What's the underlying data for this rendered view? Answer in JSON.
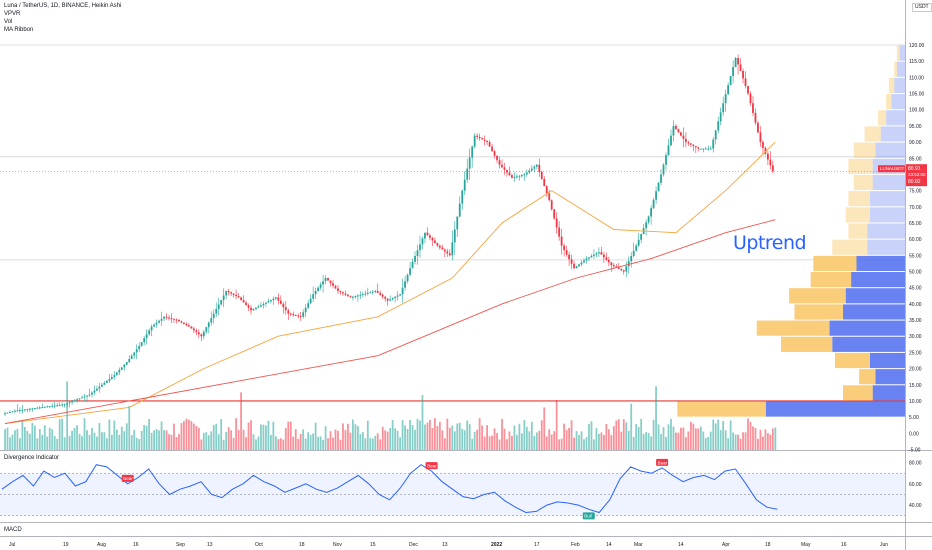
{
  "header": {
    "title": "Luna / TetherUS, 1D, BINANCE, Heikin Ashi",
    "indicators": [
      "VPVR",
      "Vol",
      "MA Ribbon"
    ],
    "currency": "USDT"
  },
  "annotation": {
    "text": "Uptrend",
    "color": "#2962ff"
  },
  "price_label": {
    "symbol": "LUNAUSDT",
    "value": "80.91",
    "countdown": "23:52:00",
    "prev": "80.82"
  },
  "colors": {
    "up": "#26a69a",
    "down": "#f23645",
    "ma_fast": "#f7a33b",
    "ma_slow": "#ef5350",
    "rsi": "#2962ff",
    "vp_up": "#4d6cf0",
    "vp_down": "#f9c86b"
  },
  "panes": {
    "rsi_title": "Divergence Indicator",
    "macd_title": "MACD"
  },
  "chart_data": {
    "type": "line",
    "title": "Luna / TetherUS, 1D, BINANCE, Heikin Ashi",
    "x_ticks": [
      "Jul",
      "19",
      "Aug",
      "16",
      "Sep",
      "13",
      "Oct",
      "18",
      "Nov",
      "15",
      "Dec",
      "13",
      "2022",
      "17",
      "Feb",
      "14",
      "Mar",
      "14",
      "Apr",
      "18",
      "May",
      "16",
      "Jun"
    ],
    "y_ticks": [
      "120.00",
      "115.00",
      "110.00",
      "105.00",
      "100.00",
      "95.00",
      "90.00",
      "85.00",
      "80.00",
      "75.00",
      "70.00",
      "65.00",
      "60.00",
      "55.00",
      "50.00",
      "45.00",
      "40.00",
      "35.00",
      "30.00",
      "25.00",
      "20.00",
      "15.00",
      "10.00",
      "5.00",
      "0.00",
      "-5.00"
    ],
    "ylim": [
      -5,
      120
    ],
    "price_path": [
      [
        0,
        6
      ],
      [
        5,
        7
      ],
      [
        15,
        8
      ],
      [
        25,
        9
      ],
      [
        35,
        12
      ],
      [
        40,
        15
      ],
      [
        45,
        18
      ],
      [
        50,
        22
      ],
      [
        55,
        27
      ],
      [
        60,
        33
      ],
      [
        65,
        36
      ],
      [
        70,
        35
      ],
      [
        75,
        33
      ],
      [
        80,
        30
      ],
      [
        85,
        37
      ],
      [
        90,
        44
      ],
      [
        95,
        42
      ],
      [
        100,
        38
      ],
      [
        105,
        40
      ],
      [
        110,
        42
      ],
      [
        115,
        37
      ],
      [
        120,
        36
      ],
      [
        125,
        43
      ],
      [
        130,
        48
      ],
      [
        135,
        44
      ],
      [
        140,
        42
      ],
      [
        145,
        43
      ],
      [
        150,
        44
      ],
      [
        155,
        41
      ],
      [
        160,
        43
      ],
      [
        165,
        53
      ],
      [
        170,
        62
      ],
      [
        175,
        58
      ],
      [
        180,
        55
      ],
      [
        185,
        75
      ],
      [
        190,
        92
      ],
      [
        195,
        90
      ],
      [
        200,
        83
      ],
      [
        205,
        79
      ],
      [
        210,
        80
      ],
      [
        215,
        83
      ],
      [
        220,
        72
      ],
      [
        225,
        58
      ],
      [
        230,
        51
      ],
      [
        235,
        54
      ],
      [
        240,
        56
      ],
      [
        245,
        52
      ],
      [
        250,
        50
      ],
      [
        255,
        58
      ],
      [
        260,
        67
      ],
      [
        265,
        80
      ],
      [
        270,
        95
      ],
      [
        275,
        90
      ],
      [
        280,
        88
      ],
      [
        285,
        88
      ],
      [
        290,
        102
      ],
      [
        295,
        116
      ],
      [
        297,
        112
      ],
      [
        300,
        105
      ],
      [
        305,
        90
      ],
      [
        310,
        81
      ]
    ],
    "ma_fast": [
      [
        0,
        3
      ],
      [
        50,
        8
      ],
      [
        80,
        20
      ],
      [
        110,
        30
      ],
      [
        150,
        36
      ],
      [
        180,
        48
      ],
      [
        200,
        65
      ],
      [
        220,
        75
      ],
      [
        245,
        63
      ],
      [
        270,
        62
      ],
      [
        290,
        75
      ],
      [
        310,
        90
      ]
    ],
    "ma_slow": [
      [
        0,
        3
      ],
      [
        100,
        17
      ],
      [
        150,
        24
      ],
      [
        200,
        40
      ],
      [
        230,
        48
      ],
      [
        260,
        54
      ],
      [
        290,
        62
      ],
      [
        310,
        66
      ]
    ],
    "horizontal_levels": [
      85.45,
      53.6,
      10.0
    ],
    "volume_profile": [
      {
        "price": 117.5,
        "up": 2,
        "down": 1
      },
      {
        "price": 112.5,
        "up": 3,
        "down": 1
      },
      {
        "price": 107.5,
        "up": 4,
        "down": 2
      },
      {
        "price": 102.5,
        "up": 5,
        "down": 2
      },
      {
        "price": 97.5,
        "up": 7,
        "down": 3
      },
      {
        "price": 92.5,
        "up": 9,
        "down": 6
      },
      {
        "price": 87.5,
        "up": 11,
        "down": 8
      },
      {
        "price": 82.5,
        "up": 12,
        "down": 9
      },
      {
        "price": 77.5,
        "up": 12,
        "down": 7
      },
      {
        "price": 72.5,
        "up": 13,
        "down": 8
      },
      {
        "price": 67.5,
        "up": 13,
        "down": 9
      },
      {
        "price": 62.5,
        "up": 14,
        "down": 7
      },
      {
        "price": 57.5,
        "up": 14,
        "down": 13
      },
      {
        "price": 52.5,
        "up": 18,
        "down": 16
      },
      {
        "price": 47.5,
        "up": 20,
        "down": 15
      },
      {
        "price": 42.5,
        "up": 22,
        "down": 21
      },
      {
        "price": 37.5,
        "up": 23,
        "down": 18
      },
      {
        "price": 32.5,
        "up": 28,
        "down": 27
      },
      {
        "price": 27.5,
        "up": 27,
        "down": 19
      },
      {
        "price": 22.5,
        "up": 13,
        "down": 13
      },
      {
        "price": 17.5,
        "up": 11,
        "down": 6
      },
      {
        "price": 12.5,
        "up": 12,
        "down": 11
      },
      {
        "price": 7.5,
        "up": 58,
        "down": 30
      }
    ],
    "rsi": {
      "y_ticks": [
        "80.00",
        "60.00",
        "40.00"
      ],
      "ylim": [
        25,
        90
      ],
      "band": [
        30,
        70
      ],
      "values": [
        55,
        62,
        68,
        58,
        72,
        66,
        70,
        58,
        62,
        78,
        76,
        68,
        60,
        66,
        74,
        60,
        50,
        55,
        58,
        62,
        50,
        47,
        55,
        60,
        68,
        62,
        58,
        52,
        56,
        60,
        55,
        52,
        56,
        62,
        68,
        60,
        50,
        45,
        56,
        70,
        78,
        72,
        62,
        55,
        48,
        46,
        50,
        52,
        44,
        38,
        33,
        34,
        40,
        43,
        42,
        40,
        36,
        33,
        45,
        65,
        76,
        72,
        70,
        75,
        68,
        62,
        66,
        68,
        64,
        72,
        74,
        60,
        45,
        38,
        36
      ],
      "labels": [
        {
          "text": "Bear",
          "type": "bear",
          "i": 12
        },
        {
          "text": "Bear",
          "type": "bear",
          "i": 41
        },
        {
          "text": "Bull",
          "type": "bull",
          "i": 56
        },
        {
          "text": "Bear",
          "type": "bear",
          "i": 63
        }
      ]
    }
  }
}
